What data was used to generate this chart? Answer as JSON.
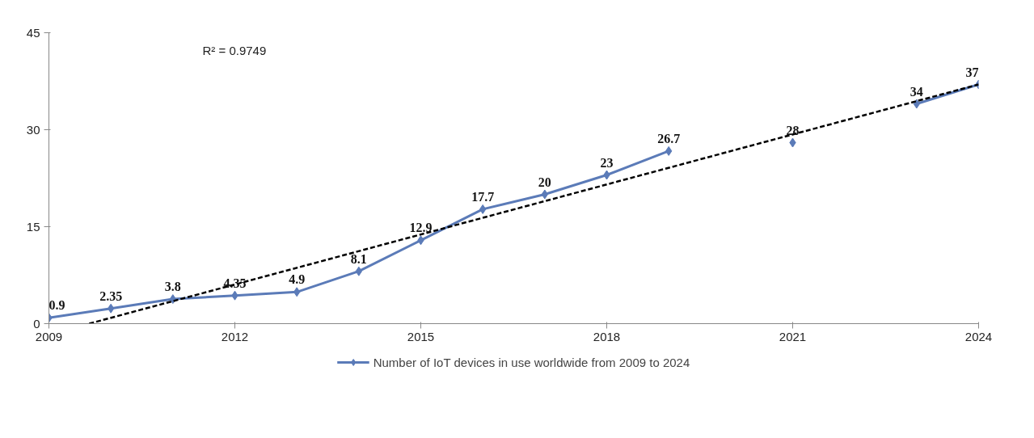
{
  "chart_data": {
    "type": "line",
    "xlim": [
      2009,
      2024
    ],
    "xticks": [
      2009,
      2012,
      2015,
      2018,
      2021,
      2024
    ],
    "ylim": [
      0,
      45
    ],
    "yticks": [
      0,
      15,
      30,
      45
    ],
    "grid": false,
    "legend": "bottom",
    "annotations": [
      "R² = 0.9749"
    ],
    "series": [
      {
        "name": "Number of IoT devices in use worldwide from 2009 to 2024",
        "color": "#5b7bb8",
        "marker": "diamond",
        "line_style": "solid",
        "data_labels": true,
        "x": [
          2009,
          2010,
          2011,
          2012,
          2013,
          2014,
          2015,
          2016,
          2017,
          2018,
          2019,
          2020,
          2021,
          2022,
          2023,
          2024
        ],
        "values": [
          0.9,
          2.35,
          3.8,
          4.35,
          4.9,
          8.1,
          12.9,
          17.7,
          20,
          23,
          26.7,
          null,
          28,
          null,
          34,
          37
        ]
      },
      {
        "type": "line",
        "color": "#000000",
        "marker": "none",
        "line_style": "dashed",
        "x": [
          2009.65,
          2024
        ],
        "values": [
          0,
          37
        ]
      }
    ]
  }
}
